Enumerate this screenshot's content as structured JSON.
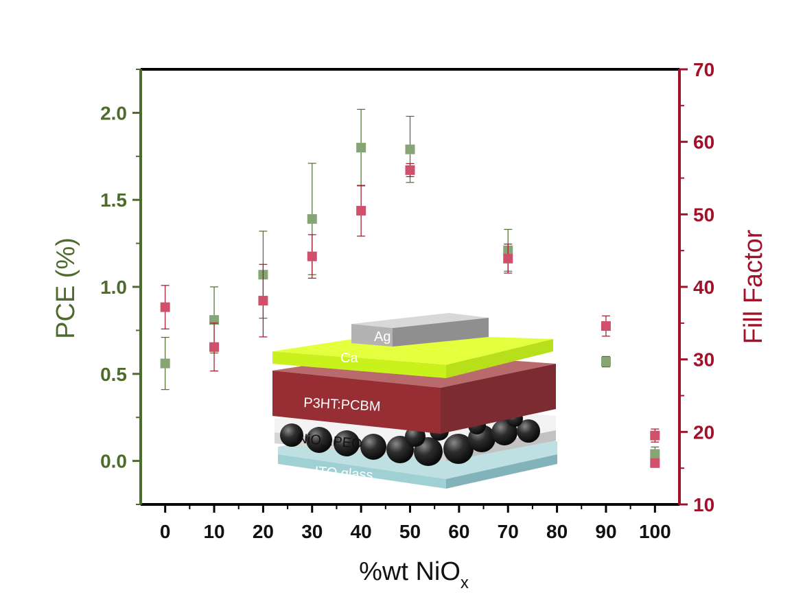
{
  "colors": {
    "pce": "#4e6b2e",
    "ff": "#a0122a",
    "pce_marker": "#86a574",
    "ff_marker": "#d0506c"
  },
  "chart_data": {
    "type": "scatter",
    "xlabel_main": "%wt NiO",
    "xlabel_sub": "x",
    "ylabel_left": "PCE (%)",
    "ylabel_right": "Fill Factor",
    "xlim": [
      -5,
      105
    ],
    "ylim_left": [
      -0.25,
      2.25
    ],
    "ylim_right": [
      10,
      70
    ],
    "x_ticks": [
      0,
      10,
      20,
      30,
      40,
      50,
      60,
      70,
      80,
      90,
      100
    ],
    "y_left_ticks": [
      "0.0",
      "0.5",
      "1.0",
      "1.5",
      "2.0"
    ],
    "y_right_ticks": [
      "10",
      "20",
      "30",
      "40",
      "50",
      "60",
      "70"
    ],
    "series": [
      {
        "axis": "left",
        "x": [
          0,
          10,
          20,
          30,
          40,
          50,
          70,
          90,
          100
        ],
        "y": [
          0.56,
          0.81,
          1.07,
          1.39,
          1.8,
          1.79,
          1.21,
          0.57,
          0.04
        ],
        "err": [
          0.15,
          0.19,
          0.25,
          0.32,
          0.22,
          0.19,
          0.12,
          0.03,
          0.04
        ]
      },
      {
        "axis": "right",
        "x": [
          0,
          10,
          20,
          30,
          40,
          50,
          70,
          90,
          100
        ],
        "y": [
          37.2,
          31.7,
          38.1,
          44.2,
          50.5,
          56.1,
          43.9,
          34.6,
          19.5
        ],
        "err": [
          3.0,
          3.3,
          5.0,
          3.0,
          3.5,
          0.9,
          2.0,
          1.4,
          0.9
        ]
      },
      {
        "axis": "right",
        "x": [
          100
        ],
        "y": [
          15.7
        ],
        "err": [
          0.5
        ]
      }
    ]
  },
  "inset": {
    "layers": {
      "ag": "Ag",
      "ca": "Ca",
      "p3ht": "P3HT:PCBM",
      "nio_main": "NiO",
      "nio_sub": "x",
      "nio_tail": " :PEO",
      "ito": "ITO glass"
    }
  }
}
